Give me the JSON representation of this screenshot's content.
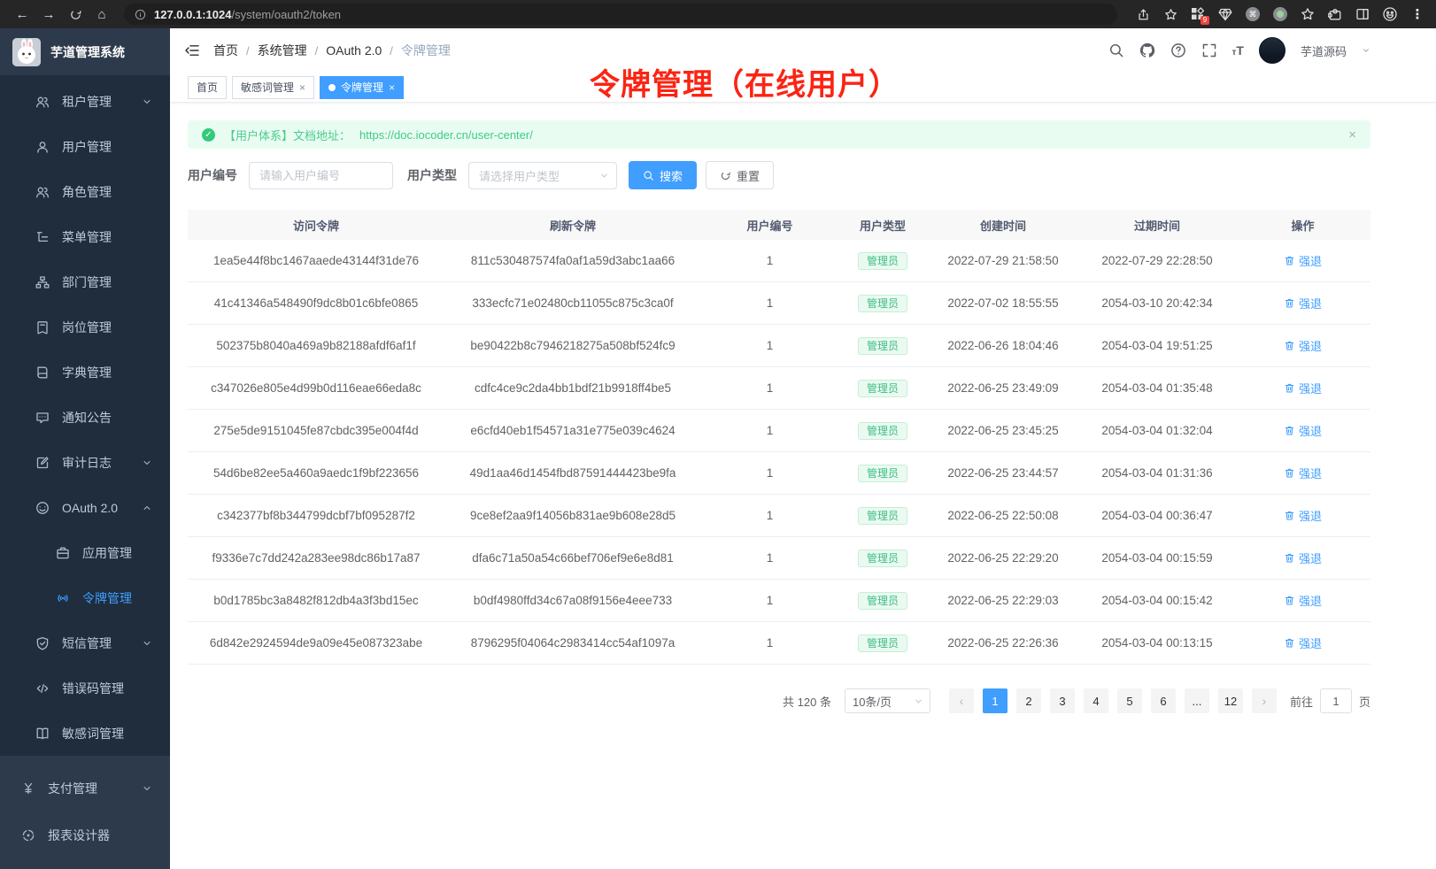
{
  "browser": {
    "url_host": "127.0.0.1:1024",
    "url_path": "/system/oauth2/token",
    "extensions_badge": "9"
  },
  "sidebar": {
    "logo_title": "芋道管理系统",
    "menu": [
      {
        "id": "tenant",
        "label": "租户管理",
        "icon": "users",
        "arrow": "down",
        "indent": 1
      },
      {
        "id": "user",
        "label": "用户管理",
        "icon": "user",
        "indent": 1
      },
      {
        "id": "role",
        "label": "角色管理",
        "icon": "users",
        "indent": 1
      },
      {
        "id": "menu",
        "label": "菜单管理",
        "icon": "tree",
        "indent": 1
      },
      {
        "id": "dept",
        "label": "部门管理",
        "icon": "org",
        "indent": 1
      },
      {
        "id": "post",
        "label": "岗位管理",
        "icon": "post",
        "indent": 1
      },
      {
        "id": "dict",
        "label": "字典管理",
        "icon": "dict",
        "indent": 1
      },
      {
        "id": "notice",
        "label": "通知公告",
        "icon": "notice",
        "indent": 1
      },
      {
        "id": "audit-log",
        "label": "审计日志",
        "icon": "log",
        "arrow": "down",
        "indent": 1
      },
      {
        "id": "oauth2",
        "label": "OAuth 2.0",
        "icon": "oauth",
        "arrow": "up",
        "indent": 1
      },
      {
        "id": "oauth2-app",
        "label": "应用管理",
        "icon": "app",
        "indent": 2
      },
      {
        "id": "oauth2-token",
        "label": "令牌管理",
        "icon": "token",
        "indent": 2,
        "active": true
      },
      {
        "id": "sms",
        "label": "短信管理",
        "icon": "shield",
        "arrow": "down",
        "indent": 1
      },
      {
        "id": "error-code",
        "label": "错误码管理",
        "icon": "code",
        "indent": 1
      },
      {
        "id": "sensitive-word",
        "label": "敏感词管理",
        "icon": "book",
        "indent": 1
      }
    ],
    "bottom_menu": [
      {
        "id": "pay",
        "label": "支付管理",
        "icon": "pay",
        "arrow": "down"
      },
      {
        "id": "report-designer",
        "label": "报表设计器",
        "icon": "report"
      }
    ]
  },
  "header": {
    "breadcrumb": [
      "首页",
      "系统管理",
      "OAuth 2.0",
      "令牌管理"
    ],
    "user_name": "芋道源码"
  },
  "tabs": [
    {
      "id": "home",
      "label": "首页"
    },
    {
      "id": "sensitive-word",
      "label": "敏感词管理",
      "closable": true
    },
    {
      "id": "token",
      "label": "令牌管理",
      "closable": true,
      "active": true
    }
  ],
  "annotation": "令牌管理（在线用户）",
  "alert": {
    "text": "【用户体系】文档地址：",
    "link": "https://doc.iocoder.cn/user-center/"
  },
  "filters": {
    "user_id_label": "用户编号",
    "user_id_placeholder": "请输入用户编号",
    "user_type_label": "用户类型",
    "user_type_placeholder": "请选择用户类型",
    "search_label": "搜索",
    "reset_label": "重置"
  },
  "table": {
    "headers": [
      "访问令牌",
      "刷新令牌",
      "用户编号",
      "用户类型",
      "创建时间",
      "过期时间",
      "操作"
    ],
    "action_label": "强退",
    "rows": [
      {
        "access_token": "1ea5e44f8bc1467aaede43144f31de76",
        "refresh_token": "811c530487574fa0af1a59d3abc1aa66",
        "user_id": "1",
        "user_type": "管理员",
        "created_at": "2022-07-29 21:58:50",
        "expires_at": "2022-07-29 22:28:50"
      },
      {
        "access_token": "41c41346a548490f9dc8b01c6bfe0865",
        "refresh_token": "333ecfc71e02480cb11055c875c3ca0f",
        "user_id": "1",
        "user_type": "管理员",
        "created_at": "2022-07-02 18:55:55",
        "expires_at": "2054-03-10 20:42:34"
      },
      {
        "access_token": "502375b8040a469a9b82188afdf6af1f",
        "refresh_token": "be90422b8c7946218275a508bf524fc9",
        "user_id": "1",
        "user_type": "管理员",
        "created_at": "2022-06-26 18:04:46",
        "expires_at": "2054-03-04 19:51:25"
      },
      {
        "access_token": "c347026e805e4d99b0d116eae66eda8c",
        "refresh_token": "cdfc4ce9c2da4bb1bdf21b9918ff4be5",
        "user_id": "1",
        "user_type": "管理员",
        "created_at": "2022-06-25 23:49:09",
        "expires_at": "2054-03-04 01:35:48"
      },
      {
        "access_token": "275e5de9151045fe87cbdc395e004f4d",
        "refresh_token": "e6cfd40eb1f54571a31e775e039c4624",
        "user_id": "1",
        "user_type": "管理员",
        "created_at": "2022-06-25 23:45:25",
        "expires_at": "2054-03-04 01:32:04"
      },
      {
        "access_token": "54d6be82ee5a460a9aedc1f9bf223656",
        "refresh_token": "49d1aa46d1454fbd87591444423be9fa",
        "user_id": "1",
        "user_type": "管理员",
        "created_at": "2022-06-25 23:44:57",
        "expires_at": "2054-03-04 01:31:36"
      },
      {
        "access_token": "c342377bf8b344799dcbf7bf095287f2",
        "refresh_token": "9ce8ef2aa9f14056b831ae9b608e28d5",
        "user_id": "1",
        "user_type": "管理员",
        "created_at": "2022-06-25 22:50:08",
        "expires_at": "2054-03-04 00:36:47"
      },
      {
        "access_token": "f9336e7c7dd242a283ee98dc86b17a87",
        "refresh_token": "dfa6c71a50a54c66bef706ef9e6e8d81",
        "user_id": "1",
        "user_type": "管理员",
        "created_at": "2022-06-25 22:29:20",
        "expires_at": "2054-03-04 00:15:59"
      },
      {
        "access_token": "b0d1785bc3a8482f812db4a3f3bd15ec",
        "refresh_token": "b0df4980ffd34c67a08f9156e4eee733",
        "user_id": "1",
        "user_type": "管理员",
        "created_at": "2022-06-25 22:29:03",
        "expires_at": "2054-03-04 00:15:42"
      },
      {
        "access_token": "6d842e2924594de9a09e45e087323abe",
        "refresh_token": "8796295f04064c2983414cc54af1097a",
        "user_id": "1",
        "user_type": "管理员",
        "created_at": "2022-06-25 22:26:36",
        "expires_at": "2054-03-04 00:13:15"
      }
    ]
  },
  "pagination": {
    "total": "共 120 条",
    "page_size": "10条/页",
    "pages": [
      "1",
      "2",
      "3",
      "4",
      "5",
      "6",
      "...",
      "12"
    ],
    "active_page": "1",
    "prev": "‹",
    "next": "›",
    "goto_label": "前往",
    "goto_value": "1",
    "goto_suffix": "页"
  },
  "colors": {
    "primary": "#409eff",
    "sidebar_bg": "#1f2d3d",
    "sidebar_bg_light": "#2d3a4b",
    "success_badge": "#3dbd83",
    "alert_green": "#4bcb8d",
    "annotation_red": "#fb2414"
  }
}
